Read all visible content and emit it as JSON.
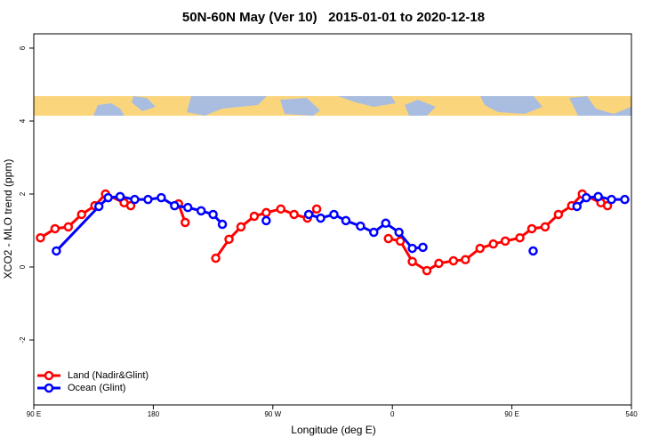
{
  "chart_data": {
    "type": "line",
    "title": "50N-60N May (Ver 10)   2015-01-01 to 2020-12-18",
    "xlabel": "Longitude (deg E)",
    "ylabel": "XCO2 - MLO trend (ppm)",
    "xlim": [
      90,
      540
    ],
    "ylim": [
      -3.78,
      6.39
    ],
    "xticks": [
      {
        "value": 90,
        "label": "90 E"
      },
      180,
      {
        "value": 270,
        "label": "90 W"
      },
      {
        "value": 360,
        "label": "0"
      },
      {
        "value": 450,
        "label": "90 E"
      },
      540
    ],
    "yticks": [
      -2,
      0,
      2,
      4,
      6
    ],
    "legend": "bottom-left",
    "series": [
      {
        "name": "Land (Nadir&Glint)",
        "color": "#ff0000",
        "x": [
          95,
          106,
          116,
          126,
          136,
          144,
          158,
          163,
          null,
          199,
          204,
          null,
          227,
          237,
          246,
          256,
          265,
          276,
          286,
          296,
          303,
          null,
          357,
          366,
          375,
          386,
          395,
          406,
          415,
          426,
          436,
          445,
          456,
          465,
          475,
          485,
          495,
          503,
          517,
          522
        ],
        "values": [
          0.8,
          1.05,
          1.1,
          1.44,
          1.68,
          2.0,
          1.76,
          1.68,
          null,
          1.73,
          1.22,
          null,
          0.24,
          0.76,
          1.1,
          1.39,
          1.49,
          1.59,
          1.44,
          1.34,
          1.59,
          null,
          0.78,
          0.71,
          0.15,
          -0.1,
          0.1,
          0.17,
          0.2,
          0.51,
          0.63,
          0.71,
          0.8,
          1.05,
          1.1,
          1.44,
          1.68,
          2.0,
          1.76,
          1.68
        ]
      },
      {
        "name": "Ocean (Glint)",
        "color": "#0000ff",
        "x": [
          107,
          139,
          146,
          155,
          166,
          176,
          186,
          196,
          206,
          216,
          225,
          232,
          null,
          265,
          null,
          297,
          306,
          316,
          325,
          336,
          346,
          355,
          365,
          375,
          383,
          null,
          466,
          null,
          499,
          506,
          515,
          525,
          535
        ],
        "values": [
          0.44,
          1.66,
          1.9,
          1.93,
          1.85,
          1.85,
          1.9,
          1.68,
          1.63,
          1.54,
          1.44,
          1.17,
          null,
          1.27,
          null,
          1.44,
          1.34,
          1.44,
          1.27,
          1.12,
          0.95,
          1.2,
          0.95,
          0.51,
          0.54,
          null,
          0.44,
          null,
          1.66,
          1.9,
          1.93,
          1.85,
          1.85
        ]
      }
    ]
  }
}
